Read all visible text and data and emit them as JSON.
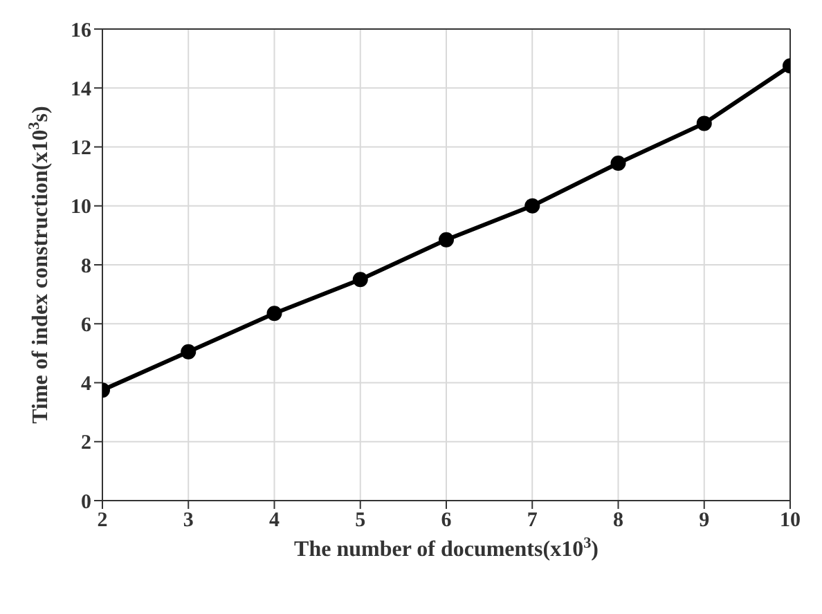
{
  "chart_data": {
    "type": "line",
    "xlabel": "The number of documents(x10$^{3}$)",
    "ylabel": "Time of index construction(x10$^{3}$s)",
    "x": [
      2,
      3,
      4,
      5,
      6,
      7,
      8,
      9,
      10
    ],
    "series": [
      {
        "color": "#000000",
        "values": [
          3.75,
          5.05,
          6.35,
          7.5,
          8.85,
          10.0,
          11.45,
          12.8,
          14.75
        ]
      }
    ],
    "xlim": [
      2,
      10
    ],
    "xticks": [
      2,
      3,
      4,
      5,
      6,
      7,
      8,
      9,
      10
    ],
    "ylim": [
      0,
      16
    ],
    "yticks": [
      0,
      2,
      4,
      6,
      8,
      10,
      12,
      14,
      16
    ],
    "grid": true,
    "marker": "circle",
    "line_style": "solid",
    "legend": false
  }
}
